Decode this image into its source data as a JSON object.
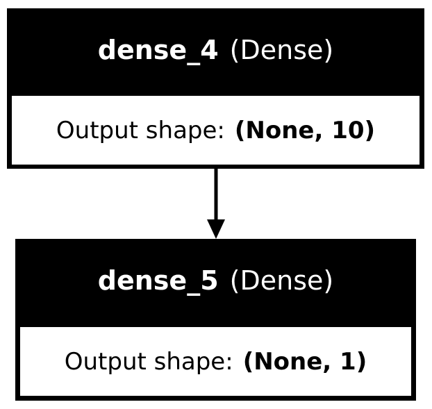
{
  "nodes": [
    {
      "name": "dense_4",
      "type": "(Dense)",
      "shape_label": "Output shape:",
      "shape_value": "(None, 10)"
    },
    {
      "name": "dense_5",
      "type": "(Dense)",
      "shape_label": "Output shape:",
      "shape_value": "(None, 1)"
    }
  ],
  "colors": {
    "node_fill": "#000000",
    "header_text": "#ffffff",
    "body_fill": "#ffffff",
    "body_text": "#000000",
    "edge": "#000000"
  }
}
